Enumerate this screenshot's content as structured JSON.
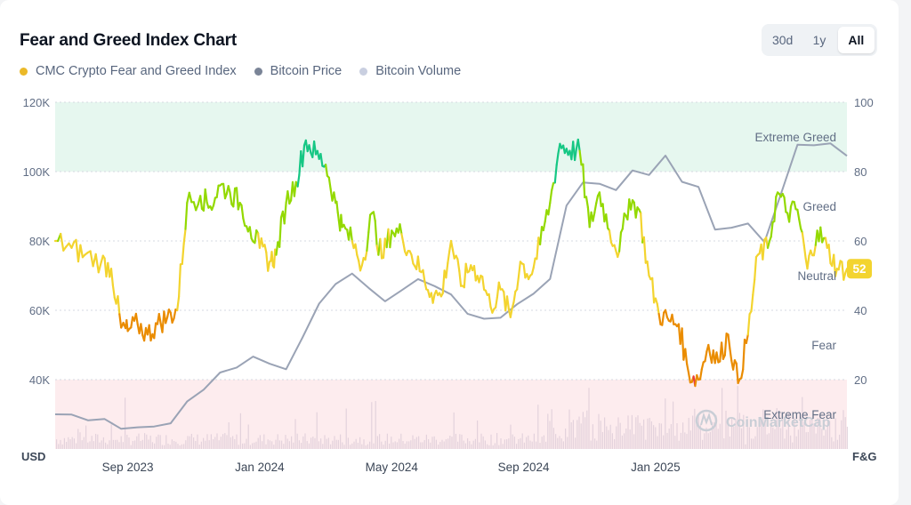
{
  "header": {
    "title": "Fear and Greed Index Chart"
  },
  "range_tabs": [
    {
      "label": "30d",
      "active": false
    },
    {
      "label": "1y",
      "active": false
    },
    {
      "label": "All",
      "active": true
    }
  ],
  "legend": [
    {
      "label": "CMC Crypto Fear and Greed Index",
      "color": "#ebb928"
    },
    {
      "label": "Bitcoin Price",
      "color": "#7a8497"
    },
    {
      "label": "Bitcoin Volume",
      "color": "#c9cfe0"
    }
  ],
  "watermark": "CoinMarketCap",
  "chart_data": {
    "type": "line",
    "title": "Fear and Greed Index Chart",
    "x_ticks": [
      "Sep 2023",
      "Jan 2024",
      "May 2024",
      "Sep 2024",
      "Jan 2025"
    ],
    "x_range_months": [
      0,
      24
    ],
    "x_tick_positions_months": [
      2.2,
      6.2,
      10.2,
      14.2,
      18.2
    ],
    "left_axis": {
      "unit": "USD",
      "range": [
        20000,
        120000
      ],
      "ticks": [
        "40K",
        "60K",
        "80K",
        "100K",
        "120K"
      ],
      "tick_values": [
        40000,
        60000,
        80000,
        100000,
        120000
      ]
    },
    "right_axis": {
      "unit": "F&G",
      "range": [
        0,
        100
      ],
      "ticks": [
        "20",
        "40",
        "60",
        "80",
        "100"
      ],
      "tick_values": [
        20,
        40,
        60,
        80,
        100
      ]
    },
    "zones": [
      {
        "label": "Extreme Greed",
        "from": 80,
        "to": 100,
        "color": "#e6f7ef",
        "label_value": 90
      },
      {
        "label": "Greed",
        "from": 60,
        "to": 80,
        "color": "none",
        "label_value": 70
      },
      {
        "label": "Neutral",
        "from": 40,
        "to": 60,
        "color": "none",
        "label_value": 50
      },
      {
        "label": "Fear",
        "from": 20,
        "to": 40,
        "color": "none",
        "label_value": 30
      },
      {
        "label": "Extreme Fear",
        "from": 0,
        "to": 20,
        "color": "#fdecee",
        "label_value": 10
      }
    ],
    "current_value": "52",
    "series": [
      {
        "name": "CMC Crypto Fear and Greed Index",
        "axis": "right",
        "x": [
          0,
          0.5,
          0.9,
          1.4,
          1.7,
          2.0,
          2.2,
          2.5,
          2.8,
          3.1,
          3.4,
          3.7,
          4.0,
          4.4,
          4.7,
          5.0,
          5.3,
          5.6,
          5.9,
          6.2,
          6.5,
          6.7,
          7.0,
          7.3,
          7.6,
          7.9,
          8.2,
          8.5,
          8.7,
          9.0,
          9.3,
          9.6,
          9.9,
          10.2,
          10.5,
          10.8,
          11.1,
          11.4,
          11.7,
          12.0,
          12.3,
          12.6,
          12.9,
          13.2,
          13.5,
          13.8,
          14.1,
          14.4,
          14.7,
          15.0,
          15.3,
          15.6,
          15.9,
          16.2,
          16.5,
          16.8,
          17.1,
          17.4,
          17.7,
          18.0,
          18.3,
          18.6,
          18.9,
          19.2,
          19.5,
          19.8,
          20.1,
          20.4,
          20.7,
          21.0,
          21.3,
          21.6,
          21.9,
          22.2,
          22.5,
          22.8,
          23.1,
          23.4,
          23.7,
          24.0
        ],
        "values": [
          60,
          58,
          56,
          54,
          52,
          35,
          34,
          36,
          33,
          36,
          38,
          40,
          71,
          73,
          70,
          76,
          74,
          71,
          64,
          58,
          54,
          56,
          71,
          77,
          89,
          85,
          82,
          71,
          64,
          60,
          53,
          68,
          55,
          63,
          62,
          56,
          51,
          45,
          44,
          60,
          47,
          53,
          50,
          41,
          46,
          38,
          54,
          50,
          59,
          71,
          88,
          86,
          86,
          64,
          74,
          63,
          57,
          72,
          69,
          50,
          39,
          37,
          36,
          22,
          20,
          30,
          25,
          33,
          19,
          33,
          56,
          58,
          74,
          68,
          69,
          52,
          63,
          58,
          52,
          52
        ]
      },
      {
        "name": "Bitcoin Price",
        "axis": "left",
        "x": [
          0,
          0.5,
          1.0,
          1.5,
          2.0,
          2.5,
          3.0,
          3.5,
          4.0,
          4.5,
          5.0,
          5.5,
          6.0,
          6.5,
          7.0,
          7.5,
          8.0,
          8.5,
          9.0,
          9.5,
          10.0,
          10.5,
          11.0,
          11.5,
          12.0,
          12.5,
          13.0,
          13.5,
          14.0,
          14.5,
          15.0,
          15.5,
          16.0,
          16.5,
          17.0,
          17.5,
          18.0,
          18.5,
          19.0,
          19.5,
          20.0,
          20.5,
          21.0,
          21.5,
          22.0,
          22.5,
          23.0,
          23.5,
          24.0
        ],
        "values": [
          30000,
          29500,
          29000,
          28600,
          26500,
          26000,
          26800,
          27500,
          34000,
          37500,
          42000,
          43500,
          46000,
          44000,
          42500,
          51500,
          62500,
          67000,
          70000,
          66000,
          63000,
          66000,
          69000,
          67000,
          64000,
          58500,
          58000,
          58500,
          62000,
          64000,
          69000,
          90000,
          97000,
          96000,
          95000,
          101000,
          99000,
          104000,
          97000,
          96000,
          84000,
          84000,
          85000,
          80000,
          94000,
          107000,
          108000,
          108000,
          105000
        ]
      }
    ],
    "volume_series": {
      "name": "Bitcoin Volume",
      "description": "daily volume bars along the chart floor (unlabeled, relative)"
    }
  }
}
